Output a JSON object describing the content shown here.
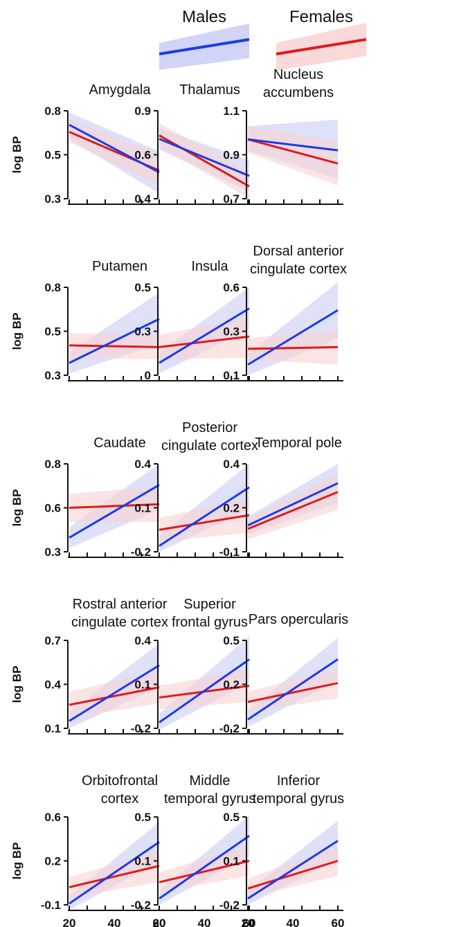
{
  "legend": {
    "males": {
      "label": "Males",
      "color": "#1a3be6",
      "band": "#c9cdf5"
    },
    "females": {
      "label": "Females",
      "color": "#e01a1a",
      "band": "#f8d2d2"
    }
  },
  "chart_data": [
    {
      "type": "line",
      "title": [
        "Amygdala"
      ],
      "ylabel": "log BP",
      "xlim": [
        20,
        60
      ],
      "ylim": [
        0.3,
        0.8
      ],
      "yticks": [
        "0.8",
        "0.5",
        "0.3"
      ],
      "xticks": [],
      "series": [
        {
          "name": "Males",
          "x": [
            20,
            60
          ],
          "y": [
            0.72,
            0.45
          ],
          "ci_low": [
            0.64,
            0.33
          ],
          "ci_high": [
            0.79,
            0.57
          ]
        },
        {
          "name": "Females",
          "x": [
            20,
            60
          ],
          "y": [
            0.68,
            0.46
          ],
          "ci_low": [
            0.62,
            0.38
          ],
          "ci_high": [
            0.75,
            0.55
          ]
        }
      ]
    },
    {
      "type": "line",
      "title": [
        "Thalamus"
      ],
      "ylabel": "",
      "xlim": [
        20,
        60
      ],
      "ylim": [
        0.4,
        0.9
      ],
      "yticks": [
        "0.9",
        "0.6",
        "0.4"
      ],
      "xticks": [],
      "series": [
        {
          "name": "Males",
          "x": [
            20,
            60
          ],
          "y": [
            0.74,
            0.53
          ],
          "ci_low": [
            0.68,
            0.44
          ],
          "ci_high": [
            0.8,
            0.62
          ]
        },
        {
          "name": "Females",
          "x": [
            20,
            60
          ],
          "y": [
            0.76,
            0.47
          ],
          "ci_low": [
            0.7,
            0.4
          ],
          "ci_high": [
            0.83,
            0.55
          ]
        }
      ]
    },
    {
      "type": "line",
      "title": [
        "Nucleus",
        "accumbens"
      ],
      "ylabel": "",
      "xlim": [
        20,
        60
      ],
      "ylim": [
        0.7,
        1.1
      ],
      "yticks": [
        "1.1",
        "0.9",
        "0.7"
      ],
      "xticks": [],
      "series": [
        {
          "name": "Males",
          "x": [
            20,
            60
          ],
          "y": [
            0.97,
            0.92
          ],
          "ci_low": [
            0.92,
            0.79
          ],
          "ci_high": [
            1.03,
            1.06
          ]
        },
        {
          "name": "Females",
          "x": [
            20,
            60
          ],
          "y": [
            0.97,
            0.86
          ],
          "ci_low": [
            0.91,
            0.76
          ],
          "ci_high": [
            1.03,
            0.96
          ]
        }
      ]
    },
    {
      "type": "line",
      "title": [
        "Putamen"
      ],
      "ylabel": "log BP",
      "xlim": [
        20,
        60
      ],
      "ylim": [
        0.3,
        0.8
      ],
      "yticks": [
        "0.8",
        "0.5",
        "0.3"
      ],
      "xticks": [],
      "series": [
        {
          "name": "Males",
          "x": [
            20,
            60
          ],
          "y": [
            0.37,
            0.62
          ],
          "ci_low": [
            0.31,
            0.48
          ],
          "ci_high": [
            0.43,
            0.77
          ]
        },
        {
          "name": "Females",
          "x": [
            20,
            60
          ],
          "y": [
            0.47,
            0.46
          ],
          "ci_low": [
            0.4,
            0.39
          ],
          "ci_high": [
            0.54,
            0.53
          ]
        }
      ]
    },
    {
      "type": "line",
      "title": [
        "Insula"
      ],
      "ylabel": "",
      "xlim": [
        20,
        60
      ],
      "ylim": [
        0,
        0.5
      ],
      "yticks": [
        "0.5",
        "0.3",
        "0"
      ],
      "xticks": [],
      "series": [
        {
          "name": "Males",
          "x": [
            20,
            60
          ],
          "y": [
            0.07,
            0.38
          ],
          "ci_low": [
            0.01,
            0.26
          ],
          "ci_high": [
            0.13,
            0.5
          ]
        },
        {
          "name": "Females",
          "x": [
            20,
            60
          ],
          "y": [
            0.16,
            0.22
          ],
          "ci_low": [
            0.09,
            0.1
          ],
          "ci_high": [
            0.23,
            0.33
          ]
        }
      ]
    },
    {
      "type": "line",
      "title": [
        "Dorsal anterior",
        "cingulate cortex"
      ],
      "ylabel": "",
      "xlim": [
        20,
        60
      ],
      "ylim": [
        0.1,
        0.6
      ],
      "yticks": [
        "0.6",
        "0.3",
        "0.1"
      ],
      "xticks": [],
      "series": [
        {
          "name": "Males",
          "x": [
            20,
            60
          ],
          "y": [
            0.16,
            0.47
          ],
          "ci_low": [
            0.1,
            0.31
          ],
          "ci_high": [
            0.22,
            0.63
          ]
        },
        {
          "name": "Females",
          "x": [
            20,
            60
          ],
          "y": [
            0.25,
            0.26
          ],
          "ci_low": [
            0.19,
            0.16
          ],
          "ci_high": [
            0.31,
            0.36
          ]
        }
      ]
    },
    {
      "type": "line",
      "title": [
        "Caudate"
      ],
      "ylabel": "log BP",
      "xlim": [
        20,
        60
      ],
      "ylim": [
        0.3,
        0.8
      ],
      "yticks": [
        "0.8",
        "0.6",
        "0.3"
      ],
      "xticks": [],
      "series": [
        {
          "name": "Males",
          "x": [
            20,
            60
          ],
          "y": [
            0.38,
            0.68
          ],
          "ci_low": [
            0.32,
            0.54
          ],
          "ci_high": [
            0.44,
            0.8
          ]
        },
        {
          "name": "Females",
          "x": [
            20,
            60
          ],
          "y": [
            0.55,
            0.57
          ],
          "ci_low": [
            0.47,
            0.47
          ],
          "ci_high": [
            0.63,
            0.67
          ]
        }
      ]
    },
    {
      "type": "line",
      "title": [
        "Posterior",
        "cingulate cortex"
      ],
      "ylabel": "",
      "xlim": [
        20,
        60
      ],
      "ylim": [
        -0.2,
        0.4
      ],
      "yticks": [
        "0.4",
        "0.1",
        "-0.2"
      ],
      "xticks": [],
      "series": [
        {
          "name": "Males",
          "x": [
            20,
            60
          ],
          "y": [
            -0.16,
            0.24
          ],
          "ci_low": [
            -0.2,
            0.09
          ],
          "ci_high": [
            -0.09,
            0.4
          ]
        },
        {
          "name": "Females",
          "x": [
            20,
            60
          ],
          "y": [
            -0.05,
            0.05
          ],
          "ci_low": [
            -0.13,
            -0.07
          ],
          "ci_high": [
            0.03,
            0.17
          ]
        }
      ]
    },
    {
      "type": "line",
      "title": [
        "Temporal pole"
      ],
      "ylabel": "",
      "xlim": [
        20,
        60
      ],
      "ylim": [
        -0.1,
        0.4
      ],
      "yticks": [
        "0.4",
        "0.2",
        "-0.1"
      ],
      "xticks": [],
      "series": [
        {
          "name": "Males",
          "x": [
            20,
            60
          ],
          "y": [
            0.05,
            0.29
          ],
          "ci_low": [
            0.0,
            0.18
          ],
          "ci_high": [
            0.1,
            0.4
          ]
        },
        {
          "name": "Females",
          "x": [
            20,
            60
          ],
          "y": [
            0.03,
            0.24
          ],
          "ci_low": [
            -0.03,
            0.14
          ],
          "ci_high": [
            0.09,
            0.34
          ]
        }
      ]
    },
    {
      "type": "line",
      "title": [
        "Rostral anterior",
        "cingulate cortex"
      ],
      "ylabel": "log BP",
      "xlim": [
        20,
        60
      ],
      "ylim": [
        0.1,
        0.7
      ],
      "yticks": [
        "0.7",
        "0.4",
        "0.1"
      ],
      "xticks": [],
      "series": [
        {
          "name": "Males",
          "x": [
            20,
            60
          ],
          "y": [
            0.15,
            0.53
          ],
          "ci_low": [
            0.1,
            0.38
          ],
          "ci_high": [
            0.21,
            0.68
          ]
        },
        {
          "name": "Females",
          "x": [
            20,
            60
          ],
          "y": [
            0.26,
            0.38
          ],
          "ci_low": [
            0.17,
            0.27
          ],
          "ci_high": [
            0.35,
            0.49
          ]
        }
      ]
    },
    {
      "type": "line",
      "title": [
        "Superior",
        "frontal gyrus"
      ],
      "ylabel": "",
      "xlim": [
        20,
        60
      ],
      "ylim": [
        -0.2,
        0.4
      ],
      "yticks": [
        "0.4",
        "0.1",
        "-0.2"
      ],
      "xticks": [],
      "series": [
        {
          "name": "Males",
          "x": [
            20,
            60
          ],
          "y": [
            -0.16,
            0.27
          ],
          "ci_low": [
            -0.21,
            0.11
          ],
          "ci_high": [
            -0.1,
            0.43
          ]
        },
        {
          "name": "Females",
          "x": [
            20,
            60
          ],
          "y": [
            0.01,
            0.09
          ],
          "ci_low": [
            -0.07,
            -0.02
          ],
          "ci_high": [
            0.09,
            0.2
          ]
        }
      ]
    },
    {
      "type": "line",
      "title": [
        "Pars opercularis"
      ],
      "ylabel": "",
      "xlim": [
        20,
        60
      ],
      "ylim": [
        -0.2,
        0.5
      ],
      "yticks": [
        "0.5",
        "0.2",
        "-0.2"
      ],
      "xticks": [],
      "series": [
        {
          "name": "Males",
          "x": [
            20,
            60
          ],
          "y": [
            -0.13,
            0.35
          ],
          "ci_low": [
            -0.19,
            0.18
          ],
          "ci_high": [
            -0.06,
            0.52
          ]
        },
        {
          "name": "Females",
          "x": [
            20,
            60
          ],
          "y": [
            0.01,
            0.16
          ],
          "ci_low": [
            -0.07,
            0.04
          ],
          "ci_high": [
            0.09,
            0.28
          ]
        }
      ]
    },
    {
      "type": "line",
      "title": [
        "Orbitofrontal",
        "cortex"
      ],
      "ylabel": "log BP",
      "xlim": [
        20,
        60
      ],
      "ylim": [
        -0.1,
        0.6
      ],
      "yticks": [
        "0.6",
        "0.2",
        "-0.1"
      ],
      "xticks": [
        "20",
        "40",
        "60"
      ],
      "series": [
        {
          "name": "Males",
          "x": [
            20,
            60
          ],
          "y": [
            -0.09,
            0.4
          ],
          "ci_low": [
            -0.14,
            0.24
          ],
          "ci_high": [
            -0.03,
            0.56
          ]
        },
        {
          "name": "Females",
          "x": [
            20,
            60
          ],
          "y": [
            0.04,
            0.21
          ],
          "ci_low": [
            -0.04,
            0.08
          ],
          "ci_high": [
            0.12,
            0.33
          ]
        }
      ]
    },
    {
      "type": "line",
      "title": [
        "Middle",
        "temporal gyrus"
      ],
      "ylabel": "",
      "xlim": [
        20,
        60
      ],
      "ylim": [
        -0.2,
        0.5
      ],
      "yticks": [
        "0.5",
        "0.1",
        "-0.2"
      ],
      "xticks": [
        "20",
        "40",
        "60"
      ],
      "series": [
        {
          "name": "Males",
          "x": [
            20,
            60
          ],
          "y": [
            -0.15,
            0.35
          ],
          "ci_low": [
            -0.2,
            0.19
          ],
          "ci_high": [
            -0.09,
            0.51
          ]
        },
        {
          "name": "Females",
          "x": [
            20,
            60
          ],
          "y": [
            -0.02,
            0.15
          ],
          "ci_low": [
            -0.1,
            0.03
          ],
          "ci_high": [
            0.06,
            0.27
          ]
        }
      ]
    },
    {
      "type": "line",
      "title": [
        "Inferior",
        "temporal gyrus"
      ],
      "ylabel": "",
      "xlim": [
        20,
        60
      ],
      "ylim": [
        -0.2,
        0.5
      ],
      "yticks": [
        "0.5",
        "0.1",
        "-0.2"
      ],
      "xticks": [
        "20",
        "40",
        "60"
      ],
      "series": [
        {
          "name": "Males",
          "x": [
            20,
            60
          ],
          "y": [
            -0.15,
            0.31
          ],
          "ci_low": [
            -0.2,
            0.16
          ],
          "ci_high": [
            -0.09,
            0.47
          ]
        },
        {
          "name": "Females",
          "x": [
            20,
            60
          ],
          "y": [
            -0.07,
            0.15
          ],
          "ci_low": [
            -0.14,
            0.03
          ],
          "ci_high": [
            0.01,
            0.27
          ]
        }
      ]
    }
  ]
}
